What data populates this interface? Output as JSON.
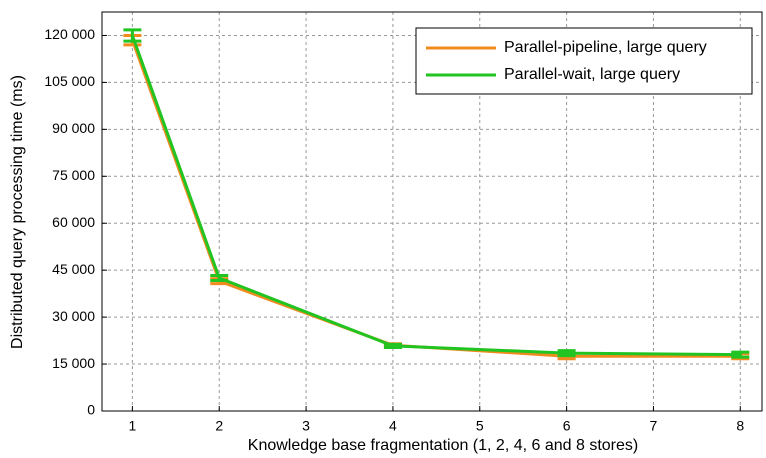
{
  "chart_data": {
    "type": "line",
    "xlabel": "Knowledge base fragmentation (1, 2, 4, 6 and 8 stores)",
    "ylabel": "Distributed query processing time (ms)",
    "x": [
      1,
      2,
      4,
      6,
      8
    ],
    "series": [
      {
        "name": "Parallel-pipeline, large query",
        "color": "#f08c1e",
        "values": [
          118500,
          41500,
          21000,
          17500,
          17500
        ],
        "errors": [
          1500,
          800,
          500,
          800,
          800
        ]
      },
      {
        "name": "Parallel-wait, large query",
        "color": "#22c422",
        "values": [
          120000,
          42500,
          20800,
          18500,
          18000
        ],
        "errors": [
          1800,
          800,
          500,
          800,
          800
        ]
      }
    ],
    "xlim": [
      0.65,
      8.25
    ],
    "xticks": [
      1,
      2,
      3,
      4,
      5,
      6,
      7,
      8
    ],
    "ylim": [
      0,
      127500
    ],
    "yticks": [
      0,
      {
        "value": 15000,
        "label": "15 000"
      },
      {
        "value": 30000,
        "label": "30 000"
      },
      {
        "value": 45000,
        "label": "45 000"
      },
      {
        "value": 60000,
        "label": "60 000"
      },
      {
        "value": 75000,
        "label": "75 000"
      },
      {
        "value": 90000,
        "label": "90 000"
      },
      {
        "value": 105000,
        "label": "105 000"
      },
      {
        "value": 120000,
        "label": "120 000"
      }
    ],
    "grid": true,
    "legend": "upper right"
  }
}
